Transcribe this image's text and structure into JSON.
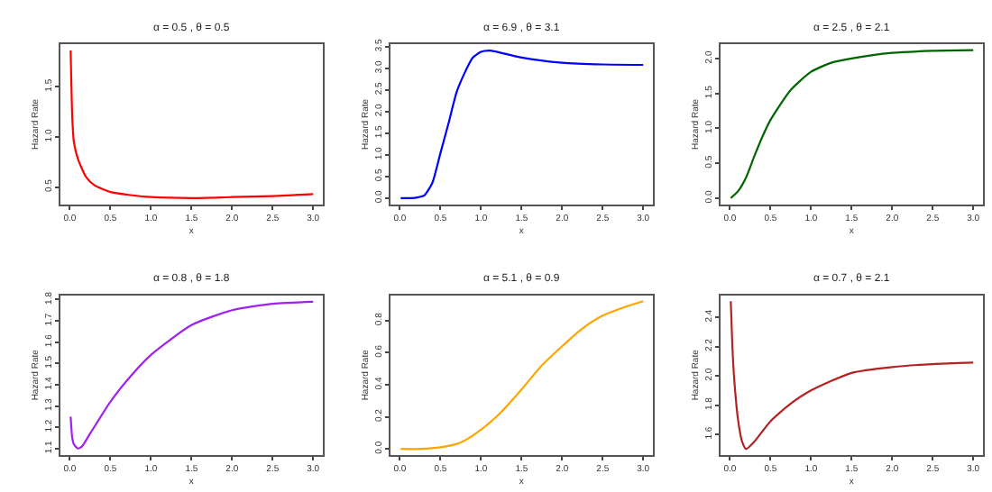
{
  "chart_data": [
    {
      "type": "line",
      "title": "α = 0.5 , θ = 0.5",
      "xlabel": "x",
      "ylabel": "Hazard Rate",
      "x": [
        0.01,
        0.03,
        0.05,
        0.1,
        0.2,
        0.3,
        0.5,
        0.75,
        1.0,
        1.5,
        2.0,
        2.5,
        3.0
      ],
      "series": [
        {
          "color": "#ff0000",
          "values": [
            1.86,
            1.2,
            0.95,
            0.78,
            0.6,
            0.52,
            0.45,
            0.42,
            0.4,
            0.39,
            0.4,
            0.41,
            0.43
          ]
        }
      ],
      "xlim": [
        -0.12,
        3.12
      ],
      "ylim": [
        0.33,
        1.92
      ],
      "xticks": [
        {
          "value": 0,
          "label": "0.0"
        },
        0.5,
        {
          "value": 1,
          "label": "1.0"
        },
        1.5,
        {
          "value": 2,
          "label": "2.0"
        },
        2.5,
        {
          "value": 3,
          "label": "3.0"
        }
      ],
      "yticks": [
        0.5,
        {
          "value": 1,
          "label": "1.0"
        },
        1.5
      ],
      "grid": false,
      "legend": false,
      "marker": "none",
      "line_style": "solid"
    },
    {
      "type": "line",
      "title": "α = 6.9 , θ = 3.1",
      "xlabel": "x",
      "ylabel": "Hazard Rate",
      "x": [
        0.01,
        0.1,
        0.2,
        0.3,
        0.4,
        0.5,
        0.6,
        0.7,
        0.8,
        0.9,
        1.0,
        1.1,
        1.2,
        1.5,
        2.0,
        2.5,
        3.0
      ],
      "series": [
        {
          "color": "#0000ff",
          "values": [
            0.0,
            0.0,
            0.01,
            0.06,
            0.35,
            1.04,
            1.73,
            2.45,
            2.9,
            3.25,
            3.38,
            3.41,
            3.38,
            3.25,
            3.13,
            3.09,
            3.08
          ]
        }
      ],
      "xlim": [
        -0.12,
        3.12
      ],
      "ylim": [
        -0.14,
        3.55
      ],
      "xticks": [
        {
          "value": 0,
          "label": "0.0"
        },
        0.5,
        {
          "value": 1,
          "label": "1.0"
        },
        1.5,
        {
          "value": 2,
          "label": "2.0"
        },
        2.5,
        {
          "value": 3,
          "label": "3.0"
        }
      ],
      "yticks": [
        {
          "value": 0,
          "label": "0.0"
        },
        0.5,
        {
          "value": 1,
          "label": "1.0"
        },
        1.5,
        {
          "value": 2,
          "label": "2.0"
        },
        2.5,
        {
          "value": 3,
          "label": "3.0"
        },
        3.5
      ],
      "grid": false,
      "legend": false,
      "marker": "none",
      "line_style": "solid"
    },
    {
      "type": "line",
      "title": "α = 2.5 , θ = 2.1",
      "xlabel": "x",
      "ylabel": "Hazard Rate",
      "x": [
        0.01,
        0.1,
        0.2,
        0.3,
        0.4,
        0.5,
        0.75,
        1.0,
        1.25,
        1.5,
        2.0,
        2.5,
        3.0
      ],
      "series": [
        {
          "color": "#006400",
          "values": [
            0.0,
            0.1,
            0.3,
            0.6,
            0.88,
            1.12,
            1.55,
            1.81,
            1.94,
            2.0,
            2.08,
            2.11,
            2.12
          ]
        }
      ],
      "xlim": [
        -0.12,
        3.12
      ],
      "ylim": [
        -0.085,
        2.2
      ],
      "xticks": [
        {
          "value": 0,
          "label": "0.0"
        },
        0.5,
        {
          "value": 1,
          "label": "1.0"
        },
        1.5,
        {
          "value": 2,
          "label": "2.0"
        },
        2.5,
        {
          "value": 3,
          "label": "3.0"
        }
      ],
      "yticks": [
        {
          "value": 0,
          "label": "0.0"
        },
        0.5,
        {
          "value": 1,
          "label": "1.0"
        },
        1.5,
        {
          "value": 2,
          "label": "2.0"
        }
      ],
      "grid": false,
      "legend": false,
      "marker": "none",
      "line_style": "solid"
    },
    {
      "type": "line",
      "title": "α = 0.8 , θ = 1.8",
      "xlabel": "x",
      "ylabel": "Hazard Rate",
      "x": [
        0.01,
        0.03,
        0.05,
        0.1,
        0.15,
        0.25,
        0.5,
        0.75,
        1.0,
        1.5,
        2.0,
        2.5,
        3.0
      ],
      "series": [
        {
          "color": "#a020f0",
          "values": [
            1.25,
            1.15,
            1.12,
            1.1,
            1.11,
            1.17,
            1.32,
            1.44,
            1.54,
            1.68,
            1.75,
            1.78,
            1.79
          ]
        }
      ],
      "xlim": [
        -0.12,
        3.12
      ],
      "ylim": [
        1.07,
        1.82
      ],
      "xticks": [
        {
          "value": 0,
          "label": "0.0"
        },
        0.5,
        {
          "value": 1,
          "label": "1.0"
        },
        1.5,
        {
          "value": 2,
          "label": "2.0"
        },
        2.5,
        {
          "value": 3,
          "label": "3.0"
        }
      ],
      "yticks": [
        1.1,
        1.2,
        1.3,
        1.4,
        1.5,
        1.6,
        1.7,
        1.8
      ],
      "grid": false,
      "legend": false,
      "marker": "none",
      "line_style": "solid"
    },
    {
      "type": "line",
      "title": "α = 5.1 , θ = 0.9",
      "xlabel": "x",
      "ylabel": "Hazard Rate",
      "x": [
        0.01,
        0.25,
        0.5,
        0.75,
        1.0,
        1.25,
        1.5,
        1.75,
        2.0,
        2.25,
        2.5,
        2.75,
        3.0
      ],
      "series": [
        {
          "color": "#ffa500",
          "values": [
            0.0,
            0.0,
            0.01,
            0.04,
            0.12,
            0.23,
            0.37,
            0.52,
            0.64,
            0.75,
            0.83,
            0.88,
            0.92
          ]
        }
      ],
      "xlim": [
        -0.12,
        3.12
      ],
      "ylim": [
        -0.037,
        0.957
      ],
      "xticks": [
        {
          "value": 0,
          "label": "0.0"
        },
        0.5,
        {
          "value": 1,
          "label": "1.0"
        },
        1.5,
        {
          "value": 2,
          "label": "2.0"
        },
        2.5,
        {
          "value": 3,
          "label": "3.0"
        }
      ],
      "yticks": [
        {
          "value": 0,
          "label": "0.0"
        },
        0.2,
        0.4,
        0.6,
        0.8
      ],
      "grid": false,
      "legend": false,
      "marker": "none",
      "line_style": "solid"
    },
    {
      "type": "line",
      "title": "α = 0.7 , θ = 2.1",
      "xlabel": "x",
      "ylabel": "Hazard Rate",
      "x": [
        0.01,
        0.03,
        0.05,
        0.1,
        0.15,
        0.2,
        0.3,
        0.5,
        0.75,
        1.0,
        1.5,
        2.0,
        2.5,
        3.0
      ],
      "series": [
        {
          "color": "#b22222",
          "values": [
            2.51,
            2.2,
            2.0,
            1.7,
            1.55,
            1.5,
            1.55,
            1.69,
            1.81,
            1.9,
            2.02,
            2.06,
            2.08,
            2.09
          ]
        }
      ],
      "xlim": [
        -0.12,
        3.12
      ],
      "ylim": [
        1.46,
        2.55
      ],
      "xticks": [
        {
          "value": 0,
          "label": "0.0"
        },
        0.5,
        {
          "value": 1,
          "label": "1.0"
        },
        1.5,
        {
          "value": 2,
          "label": "2.0"
        },
        2.5,
        {
          "value": 3,
          "label": "3.0"
        }
      ],
      "yticks": [
        1.6,
        1.8,
        {
          "value": 2,
          "label": "2.0"
        },
        2.2,
        2.4
      ],
      "grid": false,
      "legend": false,
      "marker": "none",
      "line_style": "solid"
    }
  ]
}
